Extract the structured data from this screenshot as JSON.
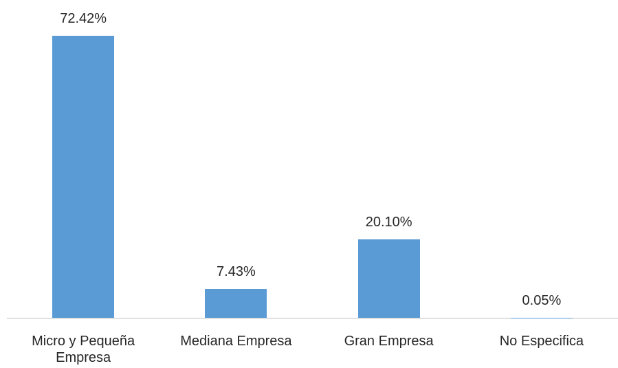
{
  "chart_data": {
    "type": "bar",
    "categories": [
      "Micro y Pequeña Empresa",
      "Mediana Empresa",
      "Gran Empresa",
      "No Especifica"
    ],
    "values": [
      72.42,
      7.43,
      20.1,
      0.05
    ],
    "value_labels": [
      "72.42%",
      "7.43%",
      "20.10%",
      "0.05%"
    ],
    "color": "#5b9bd5"
  }
}
